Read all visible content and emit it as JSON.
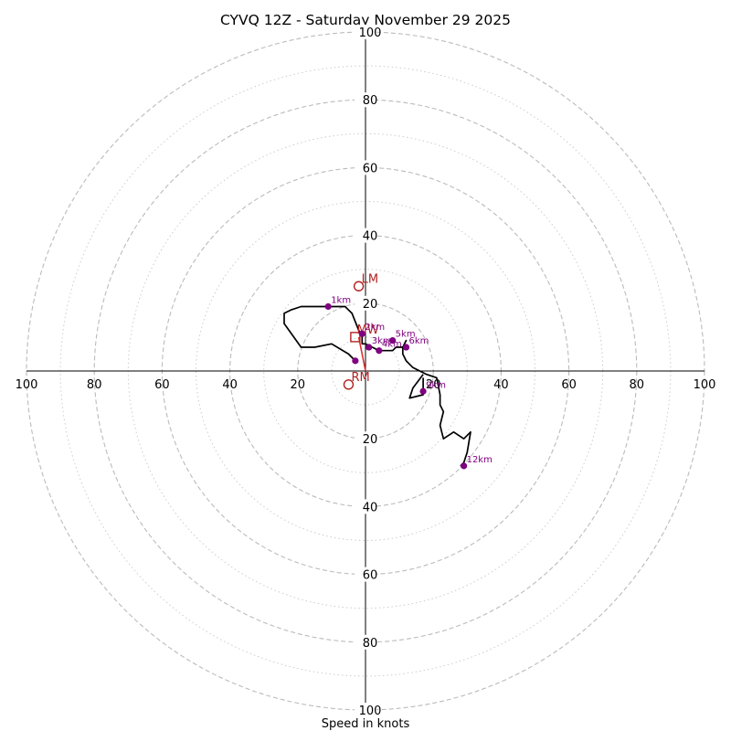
{
  "chart_data": {
    "type": "hodograph",
    "title": "CYVQ 12Z - Saturday November 29 2025",
    "xlabel": "Speed in knots",
    "units": "knots",
    "max_speed": 100,
    "rings_major": [
      20,
      40,
      60,
      80,
      100
    ],
    "rings_minor": [
      10,
      30,
      50,
      70,
      90
    ],
    "tick_labels": [
      "20",
      "40",
      "60",
      "80",
      "100"
    ],
    "colors": {
      "hodograph": "#000000",
      "height_markers": "#800080",
      "motion": "#b22222",
      "grid": "#bbbbbb",
      "axes": "#000000"
    },
    "hodograph_trace": [
      [
        -3,
        3
      ],
      [
        -5,
        5
      ],
      [
        -10,
        8
      ],
      [
        -15,
        7
      ],
      [
        -19,
        7
      ],
      [
        -24,
        14
      ],
      [
        -24,
        17
      ],
      [
        -22,
        18
      ],
      [
        -19,
        19
      ],
      [
        -11,
        19
      ],
      [
        -6,
        19
      ],
      [
        -6,
        19
      ],
      [
        -5,
        18
      ],
      [
        -4,
        17
      ],
      [
        -2,
        12
      ],
      [
        -1,
        10
      ],
      [
        -1,
        8
      ],
      [
        0,
        8
      ],
      [
        2,
        7
      ],
      [
        4,
        6
      ],
      [
        8,
        6
      ],
      [
        9,
        7
      ],
      [
        11,
        7
      ],
      [
        12,
        9
      ],
      [
        11,
        7
      ],
      [
        11,
        5
      ],
      [
        12,
        3
      ],
      [
        14,
        1
      ],
      [
        16,
        0
      ],
      [
        18,
        -1
      ],
      [
        21,
        -2
      ],
      [
        22,
        -7
      ],
      [
        22,
        -10
      ],
      [
        23,
        -12
      ],
      [
        22,
        -16
      ],
      [
        23,
        -20
      ],
      [
        26,
        -18
      ],
      [
        29,
        -20
      ],
      [
        31,
        -18
      ],
      [
        30,
        -24
      ],
      [
        29,
        -27
      ],
      [
        28,
        -28
      ]
    ],
    "hodograph_branch": [
      [
        17,
        -1
      ],
      [
        14,
        -5
      ],
      [
        13,
        -8
      ],
      [
        17,
        -7
      ],
      [
        17,
        -5
      ],
      [
        17,
        -2
      ]
    ],
    "height_markers": [
      {
        "label": "1km",
        "u": -11,
        "v": 19
      },
      {
        "label": "2km",
        "u": -1,
        "v": 11
      },
      {
        "label": "3km",
        "u": 1,
        "v": 7
      },
      {
        "label": "4km",
        "u": 4,
        "v": 6
      },
      {
        "label": "5km",
        "u": 8,
        "v": 9
      },
      {
        "label": "6km",
        "u": 12,
        "v": 7
      },
      {
        "label": "9km",
        "u": 17,
        "v": -6
      },
      {
        "label": "12km",
        "u": 29,
        "v": -28
      },
      {
        "label": "",
        "u": -3,
        "v": 3
      }
    ],
    "storm_motion": {
      "LM": {
        "label": "LM",
        "u": -2,
        "v": 25
      },
      "RM": {
        "label": "RM",
        "u": -5,
        "v": -4
      },
      "MW": {
        "label": "MW",
        "u": -2,
        "v": 10
      },
      "DTM": {
        "u": -3,
        "v": 10
      },
      "shear_vector_from": [
        0,
        0
      ],
      "shear_vector_to": [
        -2,
        10
      ]
    },
    "small_labels": [
      "9km"
    ]
  }
}
